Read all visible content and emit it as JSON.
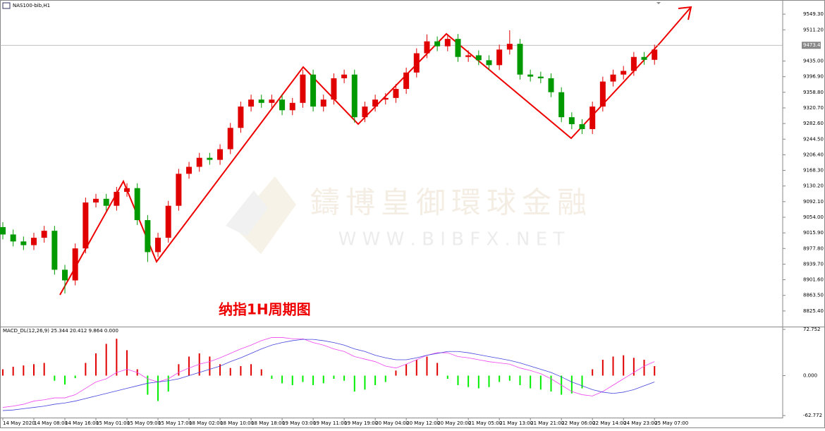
{
  "header": {
    "symbol": "NAS100-bib,H1",
    "annotation": "纳指1H周期图",
    "watermark_cn": "鑄博皇御環球金融",
    "watermark_url": "W W W . B I B F X . N E T"
  },
  "chart_data": [
    {
      "type": "candlestick",
      "ylim": [
        8787.3,
        9583.9
      ],
      "yticks": [
        {
          "value": 9549.3,
          "label": "9549.30"
        },
        {
          "value": 9511.2,
          "label": "9511.20"
        },
        {
          "value": 9435.0,
          "label": "9435.00"
        },
        {
          "value": 9396.9,
          "label": "9396.90"
        },
        {
          "value": 9358.8,
          "label": "9358.80"
        },
        {
          "value": 9320.7,
          "label": "9320.70"
        },
        {
          "value": 9282.6,
          "label": "9282.60"
        },
        {
          "value": 9244.5,
          "label": "9244.50"
        },
        {
          "value": 9206.4,
          "label": "9206.40"
        },
        {
          "value": 9168.3,
          "label": "9168.30"
        },
        {
          "value": 9130.2,
          "label": "9130.20"
        },
        {
          "value": 9092.1,
          "label": "9092.10"
        },
        {
          "value": 9054.0,
          "label": "9054.00"
        },
        {
          "value": 9015.9,
          "label": "9015.90"
        },
        {
          "value": 8977.8,
          "label": "8977.80"
        },
        {
          "value": 8939.7,
          "label": "8939.70"
        },
        {
          "value": 8901.6,
          "label": "8901.60"
        },
        {
          "value": 8863.5,
          "label": "8863.50"
        },
        {
          "value": 8825.4,
          "label": "8825.40"
        }
      ],
      "current_price": {
        "value": 9473.4,
        "label": "9473.40"
      },
      "up_color": "#e00000",
      "down_color": "#009900",
      "categories": [
        "14 May 2020",
        null,
        null,
        "14 May 08:00",
        null,
        null,
        "14 May 16:00",
        null,
        null,
        "15 May 01:00",
        null,
        null,
        "15 May 09:00",
        null,
        null,
        "15 May 17:00",
        null,
        null,
        "18 May 02:00",
        null,
        null,
        "18 May 10:00",
        null,
        null,
        "18 May 18:00",
        null,
        null,
        "19 May 03:00",
        null,
        null,
        "19 May 11:00",
        null,
        null,
        "19 May 19:00",
        null,
        null,
        "20 May 04:00",
        null,
        null,
        "20 May 12:00",
        null,
        null,
        "20 May 20:00",
        null,
        null,
        "21 May 05:00",
        null,
        null,
        "21 May 13:00",
        null,
        null,
        "21 May 21:00",
        null,
        null,
        "22 May 06:00",
        null,
        null,
        "22 May 14:00",
        null,
        null,
        "24 May 23:00",
        null,
        null,
        "25 May 07:00"
      ],
      "open": [
        9030,
        9012,
        8995,
        8986,
        9004,
        9021,
        8926,
        8900,
        8978,
        9090,
        9099,
        9082,
        9116,
        9125,
        9047,
        8969,
        9004,
        9082,
        9160,
        9177,
        9199,
        9194,
        9220,
        9272,
        9324,
        9341,
        9333,
        9341,
        9315,
        9333,
        9402,
        9324,
        9341,
        9393,
        9402,
        9298,
        9324,
        9341,
        9345,
        9367,
        9407,
        9454,
        9483,
        9471,
        9489,
        9445,
        9449,
        9437,
        9425,
        9463,
        9477,
        9402,
        9397,
        9393,
        9359,
        9298,
        9281,
        9269,
        9324,
        9385,
        9402,
        9411,
        9445,
        9438
      ],
      "high": [
        9042,
        9024,
        9007,
        9016,
        9033,
        9033,
        8938,
        8990,
        9102,
        9111,
        9111,
        9128,
        9137,
        9137,
        9059,
        9016,
        9094,
        9172,
        9189,
        9211,
        9211,
        9232,
        9284,
        9336,
        9353,
        9353,
        9353,
        9353,
        9345,
        9414,
        9414,
        9353,
        9405,
        9414,
        9414,
        9336,
        9353,
        9357,
        9379,
        9419,
        9466,
        9500,
        9495,
        9501,
        9501,
        9461,
        9461,
        9449,
        9475,
        9510,
        9489,
        9414,
        9409,
        9405,
        9371,
        9310,
        9293,
        9336,
        9397,
        9414,
        9423,
        9457,
        9457,
        9475
      ],
      "low": [
        9000,
        8983,
        8974,
        8974,
        8992,
        8914,
        8868,
        8888,
        8966,
        9078,
        9070,
        9070,
        9104,
        9035,
        8945,
        8957,
        8992,
        9070,
        9148,
        9165,
        9182,
        9182,
        9208,
        9260,
        9312,
        9321,
        9321,
        9303,
        9303,
        9321,
        9312,
        9312,
        9329,
        9381,
        9285,
        9286,
        9312,
        9329,
        9333,
        9355,
        9395,
        9442,
        9459,
        9459,
        9433,
        9433,
        9425,
        9413,
        9413,
        9451,
        9390,
        9385,
        9381,
        9347,
        9286,
        9269,
        9257,
        9257,
        9312,
        9373,
        9390,
        9399,
        9426,
        9426
      ],
      "close": [
        9012,
        8995,
        8986,
        9004,
        9021,
        8926,
        8900,
        8978,
        9090,
        9099,
        9082,
        9116,
        9125,
        9047,
        8969,
        9004,
        9082,
        9160,
        9177,
        9199,
        9194,
        9220,
        9272,
        9324,
        9341,
        9333,
        9341,
        9315,
        9333,
        9402,
        9324,
        9341,
        9393,
        9402,
        9298,
        9324,
        9341,
        9345,
        9367,
        9407,
        9454,
        9483,
        9471,
        9489,
        9445,
        9449,
        9437,
        9425,
        9463,
        9477,
        9402,
        9397,
        9393,
        9359,
        9298,
        9281,
        9269,
        9324,
        9385,
        9402,
        9411,
        9445,
        9438,
        9463
      ]
    },
    {
      "type": "macd",
      "title": "MACD_DL(12,26,9) 25.344 20.412 9.864 0.000",
      "ylim": [
        -66,
        76
      ],
      "yticks": [
        {
          "value": 72.752,
          "label": "72.752"
        },
        {
          "value": 0,
          "label": "0.000"
        },
        {
          "value": -62.772,
          "label": "-62.772"
        }
      ],
      "histogram": [
        10,
        14,
        16,
        18,
        20,
        -8,
        -14,
        -4,
        20,
        35,
        50,
        58,
        40,
        10,
        -30,
        -40,
        -25,
        18,
        30,
        35,
        30,
        18,
        12,
        15,
        18,
        10,
        -5,
        -12,
        -15,
        -10,
        -15,
        -12,
        -5,
        -8,
        -25,
        -22,
        -15,
        -10,
        8,
        18,
        25,
        30,
        20,
        -5,
        -15,
        -18,
        -20,
        -18,
        -10,
        -8,
        -15,
        -20,
        -22,
        -25,
        -30,
        -28,
        -20,
        10,
        25,
        30,
        32,
        28,
        25,
        15
      ],
      "positive_color": "#e00000",
      "negative_color": "#00ee00",
      "series": [
        {
          "color": "#ee44ee",
          "values": [
            -50,
            -48,
            -45,
            -40,
            -38,
            -35,
            -35,
            -30,
            -20,
            -10,
            -5,
            5,
            10,
            5,
            -5,
            -10,
            -5,
            5,
            12,
            18,
            22,
            28,
            35,
            42,
            48,
            55,
            60,
            60,
            58,
            58,
            52,
            48,
            42,
            38,
            30,
            26,
            22,
            15,
            12,
            18,
            25,
            32,
            36,
            36,
            30,
            28,
            25,
            22,
            20,
            18,
            12,
            8,
            3,
            -5,
            -15,
            -25,
            -30,
            -32,
            -25,
            -15,
            -5,
            5,
            15,
            22
          ]
        },
        {
          "color": "#4444dd",
          "values": [
            -55,
            -54,
            -52,
            -50,
            -48,
            -45,
            -43,
            -40,
            -36,
            -32,
            -28,
            -24,
            -20,
            -16,
            -12,
            -10,
            -8,
            -5,
            0,
            5,
            10,
            15,
            22,
            28,
            35,
            42,
            48,
            52,
            55,
            57,
            57,
            55,
            52,
            48,
            42,
            38,
            32,
            28,
            25,
            25,
            28,
            32,
            35,
            38,
            38,
            36,
            33,
            30,
            27,
            24,
            20,
            15,
            10,
            5,
            -2,
            -10,
            -16,
            -22,
            -26,
            -28,
            -26,
            -22,
            -16,
            -10
          ]
        }
      ]
    }
  ]
}
